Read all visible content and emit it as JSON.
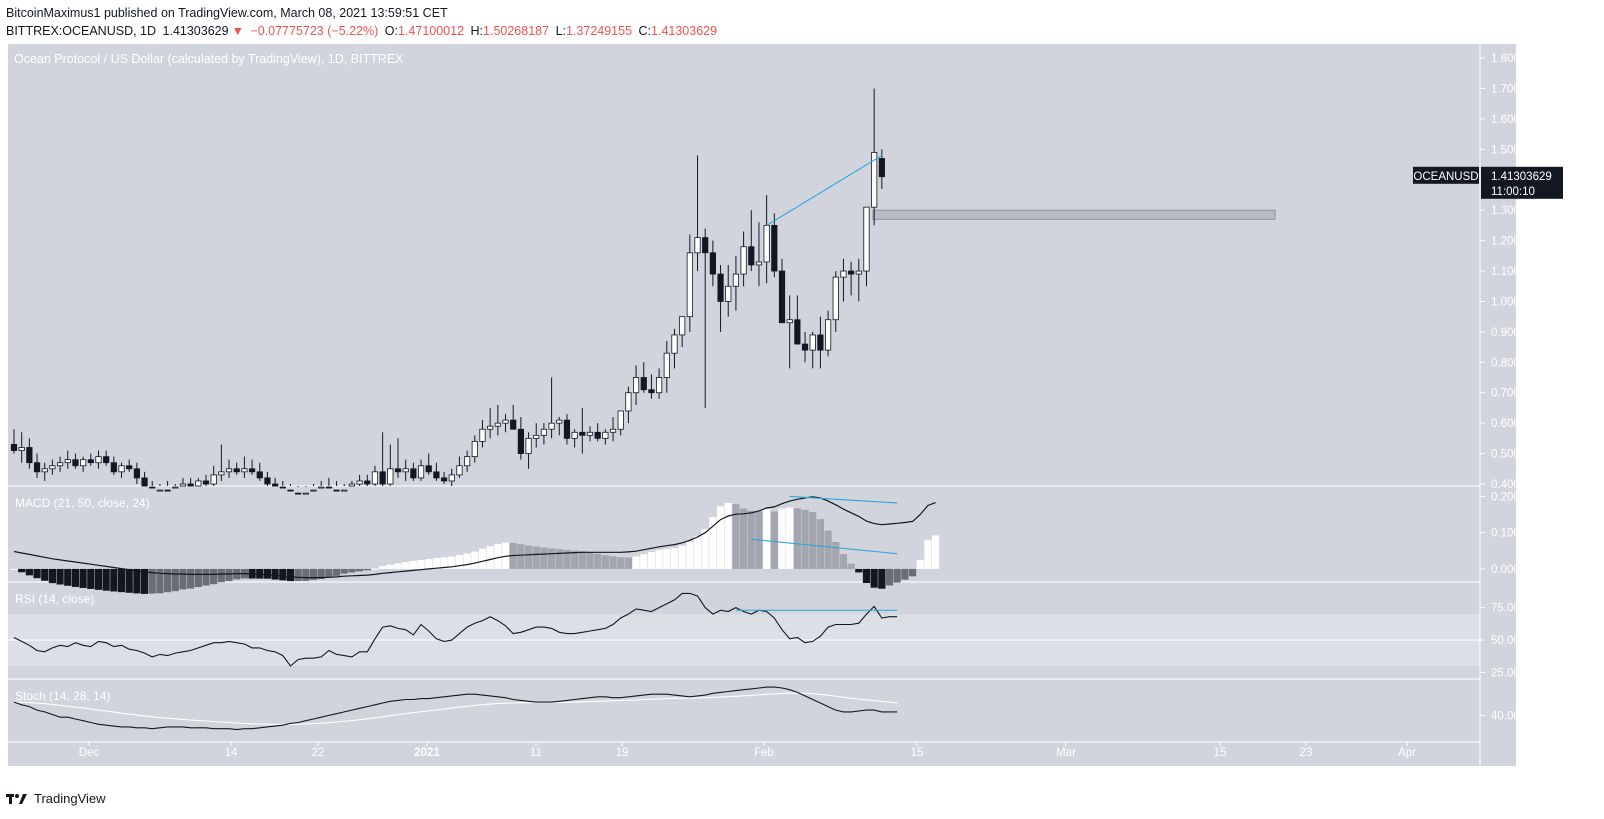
{
  "header": {
    "line1": "BitcoinMaximus1 published on TradingView.com, March 08, 2021 13:59:51 CET",
    "symbol_line": "BITTREX:OCEANUSD, 1D",
    "last": "1.41303629",
    "arrow": "▼",
    "change": "−0.07775723 (−5.22%)",
    "o_label": "O:",
    "o": "1.47100012",
    "h_label": "H:",
    "h": "1.50268187",
    "l_label": "L:",
    "l": "1.37249155",
    "c_label": "C:",
    "c": "1.41303629"
  },
  "chart_data": {
    "type": "candlestick",
    "title": "Ocean Protocol / US Dollar (calculated by TradingView), 1D, BITTREX",
    "currency": "USD",
    "price_ticks": [
      "1.80000000",
      "1.70000000",
      "1.60000000",
      "1.50000000",
      "1.40000000",
      "1.30000000",
      "1.20000000",
      "1.10000000",
      "1.00000000",
      "0.90000000",
      "0.80000000",
      "0.70000000",
      "0.60000000",
      "0.50000000",
      "0.40000000"
    ],
    "price_range": [
      0.4,
      1.82
    ],
    "last_label": "OCEANUSD",
    "last_price": "1.41303629",
    "countdown": "11:00:10",
    "x_labels": [
      "Dec",
      "14",
      "22",
      "2021",
      "11",
      "19",
      "Feb",
      "15",
      "Mar",
      "15",
      "23",
      "Apr"
    ],
    "resistance_zone": [
      1.27,
      1.3
    ],
    "candles_ohlc": [
      [
        0.53,
        0.58,
        0.5,
        0.51
      ],
      [
        0.51,
        0.57,
        0.47,
        0.52
      ],
      [
        0.52,
        0.55,
        0.45,
        0.47
      ],
      [
        0.47,
        0.5,
        0.42,
        0.44
      ],
      [
        0.44,
        0.47,
        0.41,
        0.45
      ],
      [
        0.45,
        0.48,
        0.43,
        0.46
      ],
      [
        0.46,
        0.49,
        0.44,
        0.47
      ],
      [
        0.47,
        0.51,
        0.45,
        0.48
      ],
      [
        0.48,
        0.5,
        0.45,
        0.46
      ],
      [
        0.46,
        0.49,
        0.44,
        0.48
      ],
      [
        0.48,
        0.5,
        0.46,
        0.47
      ],
      [
        0.47,
        0.51,
        0.45,
        0.49
      ],
      [
        0.49,
        0.51,
        0.46,
        0.47
      ],
      [
        0.47,
        0.49,
        0.43,
        0.44
      ],
      [
        0.44,
        0.47,
        0.42,
        0.46
      ],
      [
        0.46,
        0.48,
        0.44,
        0.45
      ],
      [
        0.45,
        0.47,
        0.4,
        0.42
      ],
      [
        0.42,
        0.44,
        0.38,
        0.39
      ],
      [
        0.39,
        0.41,
        0.36,
        0.37
      ],
      [
        0.37,
        0.4,
        0.35,
        0.38
      ],
      [
        0.38,
        0.41,
        0.36,
        0.37
      ],
      [
        0.37,
        0.4,
        0.35,
        0.39
      ],
      [
        0.39,
        0.42,
        0.37,
        0.4
      ],
      [
        0.4,
        0.42,
        0.38,
        0.39
      ],
      [
        0.39,
        0.42,
        0.37,
        0.41
      ],
      [
        0.41,
        0.43,
        0.39,
        0.4
      ],
      [
        0.4,
        0.46,
        0.39,
        0.43
      ],
      [
        0.43,
        0.53,
        0.41,
        0.44
      ],
      [
        0.44,
        0.48,
        0.42,
        0.45
      ],
      [
        0.45,
        0.47,
        0.43,
        0.44
      ],
      [
        0.44,
        0.49,
        0.42,
        0.45
      ],
      [
        0.45,
        0.48,
        0.43,
        0.44
      ],
      [
        0.44,
        0.47,
        0.41,
        0.42
      ],
      [
        0.42,
        0.44,
        0.39,
        0.4
      ],
      [
        0.4,
        0.42,
        0.38,
        0.39
      ],
      [
        0.39,
        0.41,
        0.37,
        0.38
      ],
      [
        0.38,
        0.4,
        0.36,
        0.37
      ],
      [
        0.37,
        0.39,
        0.35,
        0.36
      ],
      [
        0.36,
        0.39,
        0.35,
        0.37
      ],
      [
        0.37,
        0.4,
        0.36,
        0.38
      ],
      [
        0.38,
        0.41,
        0.37,
        0.39
      ],
      [
        0.39,
        0.42,
        0.37,
        0.38
      ],
      [
        0.38,
        0.41,
        0.36,
        0.37
      ],
      [
        0.37,
        0.4,
        0.35,
        0.38
      ],
      [
        0.38,
        0.41,
        0.36,
        0.4
      ],
      [
        0.4,
        0.43,
        0.38,
        0.41
      ],
      [
        0.41,
        0.43,
        0.39,
        0.4
      ],
      [
        0.4,
        0.46,
        0.39,
        0.44
      ],
      [
        0.44,
        0.57,
        0.38,
        0.4
      ],
      [
        0.4,
        0.53,
        0.39,
        0.45
      ],
      [
        0.45,
        0.55,
        0.42,
        0.44
      ],
      [
        0.44,
        0.48,
        0.41,
        0.45
      ],
      [
        0.45,
        0.47,
        0.41,
        0.42
      ],
      [
        0.42,
        0.48,
        0.41,
        0.46
      ],
      [
        0.46,
        0.5,
        0.43,
        0.44
      ],
      [
        0.44,
        0.47,
        0.41,
        0.42
      ],
      [
        0.42,
        0.44,
        0.4,
        0.41
      ],
      [
        0.41,
        0.45,
        0.39,
        0.43
      ],
      [
        0.43,
        0.49,
        0.42,
        0.46
      ],
      [
        0.46,
        0.51,
        0.44,
        0.49
      ],
      [
        0.49,
        0.56,
        0.47,
        0.54
      ],
      [
        0.54,
        0.61,
        0.52,
        0.58
      ],
      [
        0.58,
        0.65,
        0.55,
        0.59
      ],
      [
        0.59,
        0.66,
        0.56,
        0.6
      ],
      [
        0.6,
        0.63,
        0.57,
        0.61
      ],
      [
        0.61,
        0.66,
        0.58,
        0.58
      ],
      [
        0.58,
        0.62,
        0.48,
        0.5
      ],
      [
        0.5,
        0.57,
        0.45,
        0.55
      ],
      [
        0.55,
        0.6,
        0.52,
        0.56
      ],
      [
        0.56,
        0.6,
        0.53,
        0.58
      ],
      [
        0.58,
        0.75,
        0.55,
        0.6
      ],
      [
        0.6,
        0.62,
        0.56,
        0.61
      ],
      [
        0.61,
        0.63,
        0.53,
        0.55
      ],
      [
        0.55,
        0.58,
        0.52,
        0.57
      ],
      [
        0.57,
        0.65,
        0.5,
        0.56
      ],
      [
        0.56,
        0.59,
        0.54,
        0.57
      ],
      [
        0.57,
        0.6,
        0.54,
        0.55
      ],
      [
        0.55,
        0.58,
        0.53,
        0.57
      ],
      [
        0.57,
        0.62,
        0.54,
        0.58
      ],
      [
        0.58,
        0.64,
        0.56,
        0.64
      ],
      [
        0.64,
        0.72,
        0.6,
        0.7
      ],
      [
        0.7,
        0.79,
        0.66,
        0.75
      ],
      [
        0.75,
        0.8,
        0.7,
        0.71
      ],
      [
        0.71,
        0.76,
        0.68,
        0.7
      ],
      [
        0.7,
        0.78,
        0.68,
        0.75
      ],
      [
        0.75,
        0.87,
        0.7,
        0.83
      ],
      [
        0.83,
        0.91,
        0.78,
        0.89
      ],
      [
        0.89,
        0.95,
        0.85,
        0.95
      ],
      [
        0.95,
        1.22,
        0.9,
        1.16
      ],
      [
        1.16,
        1.48,
        1.1,
        1.21
      ],
      [
        1.21,
        1.24,
        0.65,
        1.16
      ],
      [
        1.16,
        1.2,
        1.05,
        1.09
      ],
      [
        1.09,
        1.12,
        0.9,
        1.0
      ],
      [
        1.0,
        1.12,
        0.95,
        1.05
      ],
      [
        1.05,
        1.15,
        0.97,
        1.09
      ],
      [
        1.09,
        1.23,
        1.05,
        1.18
      ],
      [
        1.18,
        1.3,
        1.1,
        1.12
      ],
      [
        1.12,
        1.26,
        1.05,
        1.13
      ],
      [
        1.13,
        1.35,
        1.06,
        1.25
      ],
      [
        1.25,
        1.29,
        1.08,
        1.1
      ],
      [
        1.1,
        1.14,
        0.93,
        0.93
      ],
      [
        0.93,
        1.02,
        0.78,
        0.94
      ],
      [
        0.94,
        1.02,
        0.87,
        0.86
      ],
      [
        0.86,
        0.9,
        0.8,
        0.84
      ],
      [
        0.84,
        0.9,
        0.78,
        0.89
      ],
      [
        0.89,
        0.95,
        0.78,
        0.84
      ],
      [
        0.84,
        0.97,
        0.82,
        0.94
      ],
      [
        0.94,
        1.1,
        0.9,
        1.08
      ],
      [
        1.08,
        1.14,
        1.0,
        1.1
      ],
      [
        1.1,
        1.13,
        1.02,
        1.09
      ],
      [
        1.09,
        1.14,
        1.0,
        1.1
      ],
      [
        1.1,
        1.31,
        1.05,
        1.31
      ],
      [
        1.31,
        1.7,
        1.25,
        1.49
      ],
      [
        1.47,
        1.5,
        1.37,
        1.41
      ]
    ],
    "trendline": [
      [
        98,
        1.25
      ],
      [
        113,
        1.48
      ]
    ],
    "macd": {
      "label": "MACD (21, 50, close, 24)",
      "ticks": [
        "0.20000000",
        "0.10000000",
        "0.00000000"
      ],
      "range": [
        -0.025,
        0.215
      ],
      "line": [
        0.048,
        0.044,
        0.04,
        0.036,
        0.032,
        0.028,
        0.025,
        0.022,
        0.019,
        0.016,
        0.013,
        0.01,
        0.007,
        0.004,
        0.001,
        -0.002,
        -0.005,
        -0.008,
        -0.01,
        -0.012,
        -0.013,
        -0.014,
        -0.014,
        -0.015,
        -0.015,
        -0.015,
        -0.015,
        -0.014,
        -0.014,
        -0.013,
        -0.013,
        -0.014,
        -0.015,
        -0.016,
        -0.018,
        -0.02,
        -0.022,
        -0.023,
        -0.024,
        -0.024,
        -0.024,
        -0.023,
        -0.022,
        -0.02,
        -0.019,
        -0.018,
        -0.017,
        -0.015,
        -0.012,
        -0.01,
        -0.008,
        -0.006,
        -0.004,
        -0.002,
        0.0,
        0.002,
        0.004,
        0.006,
        0.009,
        0.012,
        0.016,
        0.021,
        0.026,
        0.031,
        0.035,
        0.037,
        0.038,
        0.039,
        0.04,
        0.041,
        0.042,
        0.043,
        0.044,
        0.045,
        0.046,
        0.046,
        0.046,
        0.046,
        0.046,
        0.046,
        0.047,
        0.049,
        0.053,
        0.057,
        0.061,
        0.064,
        0.067,
        0.072,
        0.079,
        0.088,
        0.1,
        0.118,
        0.136,
        0.146,
        0.151,
        0.152,
        0.155,
        0.16,
        0.168,
        0.171,
        0.18,
        0.187,
        0.192,
        0.196,
        0.199,
        0.196,
        0.187,
        0.177,
        0.165,
        0.155,
        0.145,
        0.132,
        0.125,
        0.122,
        0.124,
        0.126,
        0.128,
        0.131,
        0.15,
        0.175,
        0.183
      ]
    },
    "rsi": {
      "label": "RSI (14, close)",
      "ticks": [
        "75.00",
        "50.00",
        "25.00"
      ],
      "range": [
        20,
        94
      ],
      "upper_band": 70,
      "lower_band": 30,
      "line": [
        52,
        49,
        46,
        42,
        41,
        44,
        46,
        45,
        48,
        46,
        45,
        49,
        48,
        45,
        46,
        43,
        42,
        40,
        37,
        39,
        38,
        40,
        41,
        42,
        44,
        46,
        48,
        48,
        49,
        48,
        47,
        44,
        44,
        42,
        41,
        38,
        30,
        35,
        36,
        36,
        37,
        42,
        39,
        38,
        37,
        41,
        41,
        51,
        60,
        61,
        59,
        58,
        54,
        62,
        57,
        51,
        49,
        50,
        55,
        60,
        63,
        65,
        68,
        65,
        61,
        55,
        56,
        58,
        60,
        60,
        59,
        56,
        55,
        55,
        56,
        57,
        58,
        59,
        62,
        67,
        70,
        74,
        73,
        72,
        75,
        78,
        81,
        86,
        86,
        84,
        75,
        70,
        73,
        72,
        75,
        72,
        70,
        73,
        72,
        67,
        58,
        51,
        52,
        48,
        49,
        53,
        60,
        62,
        62,
        62,
        63,
        70,
        76,
        67,
        68,
        68
      ]
    },
    "stoch": {
      "label": "Stoch (14, 28, 14)",
      "ticks": [
        "40.00"
      ],
      "range": [
        10,
        80
      ],
      "k": [
        55,
        52,
        50,
        46,
        44,
        41,
        38,
        38,
        36,
        34,
        32,
        30,
        29,
        28,
        27,
        27,
        26,
        26,
        25,
        26,
        27,
        27,
        27,
        26,
        26,
        26,
        25,
        25,
        25,
        24,
        25,
        25,
        26,
        27,
        28,
        29,
        31,
        32,
        34,
        36,
        38,
        40,
        42,
        44,
        46,
        48,
        50,
        52,
        54,
        56,
        57,
        58,
        58,
        59,
        59,
        60,
        61,
        62,
        63,
        64,
        64,
        63,
        62,
        61,
        60,
        58,
        57,
        56,
        55,
        55,
        55,
        56,
        57,
        58,
        59,
        60,
        61,
        61,
        60,
        60,
        61,
        62,
        63,
        64,
        64,
        64,
        63,
        62,
        61,
        62,
        63,
        65,
        66,
        67,
        68,
        69,
        70,
        71,
        72,
        72,
        71,
        69,
        66,
        62,
        58,
        54,
        50,
        46,
        44,
        44,
        45,
        46,
        46,
        44,
        44,
        44
      ]
    }
  },
  "footer": {
    "brand": "TradingView"
  }
}
